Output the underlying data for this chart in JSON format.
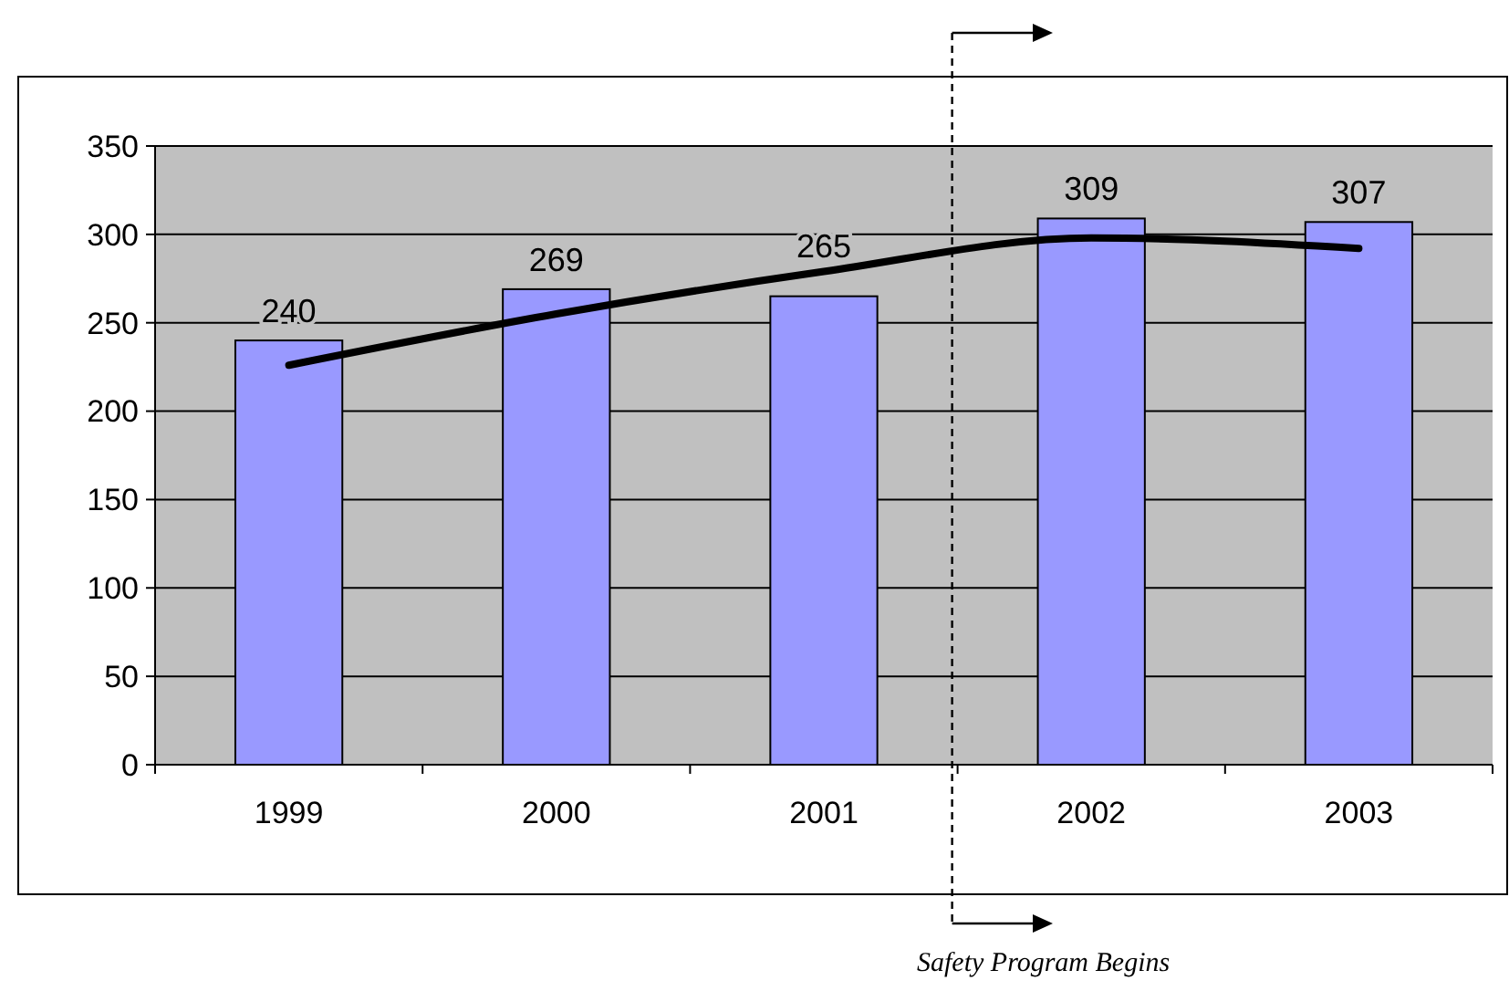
{
  "chart_data": {
    "type": "bar",
    "categories": [
      "1999",
      "2000",
      "2001",
      "2002",
      "2003"
    ],
    "series": [
      {
        "color": "#9999ff",
        "values": [
          240,
          269,
          265,
          309,
          307
        ],
        "value_labels": [
          "240",
          "269",
          "265",
          "309",
          "307"
        ]
      },
      {
        "type": "line",
        "color": "#000000",
        "values": [
          226,
          255,
          279,
          298,
          292
        ]
      }
    ],
    "ylim": [
      0,
      350
    ],
    "yticks": [
      0,
      50,
      100,
      150,
      200,
      250,
      300,
      350
    ],
    "grid": "y",
    "annotations": [
      "Safety Program Begins"
    ]
  }
}
